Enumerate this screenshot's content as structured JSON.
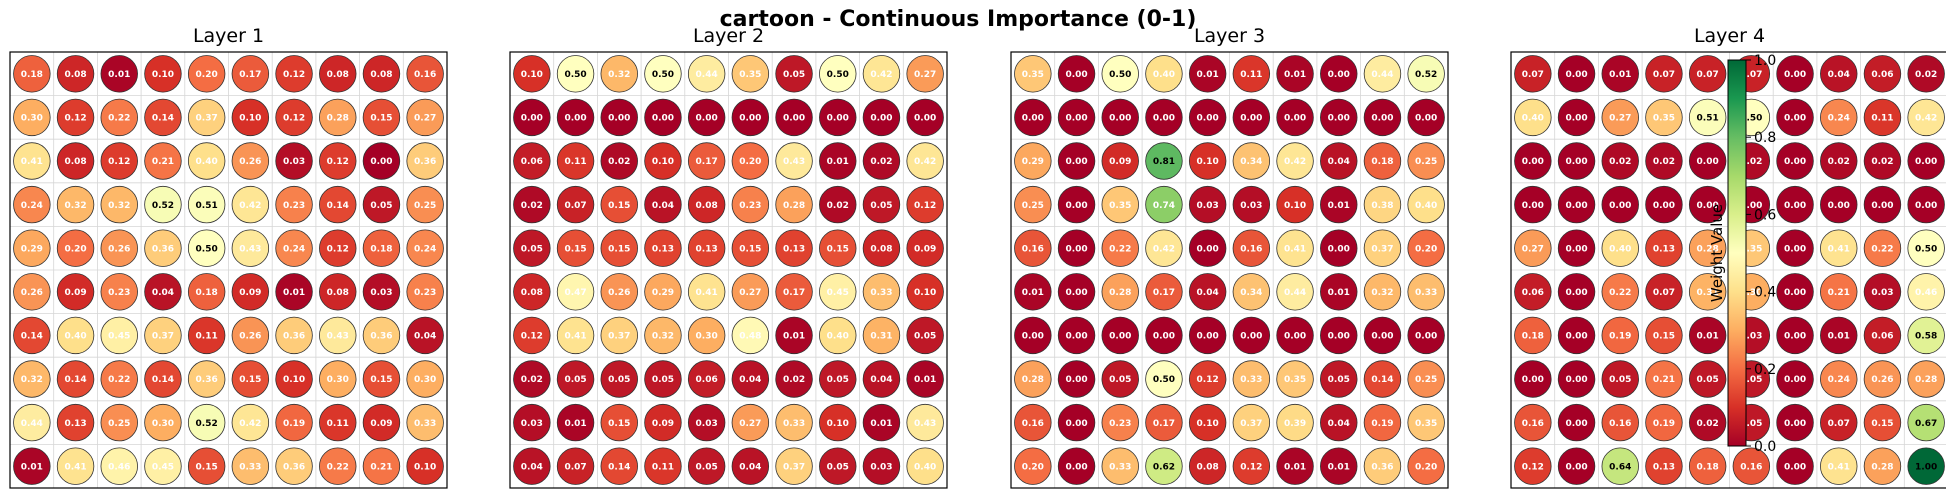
{
  "figure": {
    "title": "cartoon - Continuous Importance (0-1)"
  },
  "colorbar": {
    "label": "Weight Value",
    "ticks": [
      "0.0",
      "0.2",
      "0.4",
      "0.6",
      "0.8",
      "1.0"
    ],
    "tick_values": [
      0.0,
      0.2,
      0.4,
      0.6,
      0.8,
      1.0
    ],
    "colormap": "RdYlGn",
    "stops": [
      "#a50026",
      "#d73027",
      "#f46d43",
      "#fdae61",
      "#fee08b",
      "#ffffbf",
      "#d9ef8b",
      "#a6d96a",
      "#66bd63",
      "#1a9850",
      "#006837"
    ]
  },
  "chart_data": [
    {
      "type": "heatmap",
      "title": "Layer 1",
      "rows": 10,
      "cols": 10,
      "value_range": [
        0,
        1
      ],
      "grid": true,
      "values": [
        [
          0.18,
          0.08,
          0.01,
          0.1,
          0.2,
          0.17,
          0.12,
          0.08,
          0.08,
          0.16
        ],
        [
          0.3,
          0.12,
          0.22,
          0.14,
          0.37,
          0.1,
          0.12,
          0.28,
          0.15,
          0.27
        ],
        [
          0.41,
          0.08,
          0.12,
          0.21,
          0.4,
          0.26,
          0.03,
          0.12,
          0.0,
          0.36
        ],
        [
          0.24,
          0.32,
          0.32,
          0.52,
          0.51,
          0.42,
          0.23,
          0.14,
          0.05,
          0.25
        ],
        [
          0.29,
          0.2,
          0.26,
          0.36,
          0.5,
          0.43,
          0.24,
          0.12,
          0.18,
          0.24
        ],
        [
          0.26,
          0.09,
          0.23,
          0.04,
          0.18,
          0.09,
          0.01,
          0.08,
          0.03,
          0.23
        ],
        [
          0.14,
          0.4,
          0.45,
          0.37,
          0.11,
          0.26,
          0.36,
          0.43,
          0.36,
          0.04
        ],
        [
          0.32,
          0.14,
          0.22,
          0.14,
          0.36,
          0.15,
          0.1,
          0.3,
          0.15,
          0.3
        ],
        [
          0.44,
          0.13,
          0.25,
          0.3,
          0.52,
          0.42,
          0.19,
          0.11,
          0.09,
          0.33
        ],
        [
          0.01,
          0.41,
          0.46,
          0.45,
          0.15,
          0.33,
          0.36,
          0.22,
          0.21,
          0.1
        ]
      ]
    },
    {
      "type": "heatmap",
      "title": "Layer 2",
      "rows": 10,
      "cols": 10,
      "value_range": [
        0,
        1
      ],
      "grid": true,
      "values": [
        [
          0.1,
          0.5,
          0.32,
          0.5,
          0.44,
          0.35,
          0.05,
          0.5,
          0.42,
          0.27
        ],
        [
          0.0,
          0.0,
          0.0,
          0.0,
          0.0,
          0.0,
          0.0,
          0.0,
          0.0,
          0.0
        ],
        [
          0.06,
          0.11,
          0.02,
          0.1,
          0.17,
          0.2,
          0.43,
          0.01,
          0.02,
          0.42
        ],
        [
          0.02,
          0.07,
          0.15,
          0.04,
          0.08,
          0.23,
          0.28,
          0.02,
          0.05,
          0.12
        ],
        [
          0.05,
          0.15,
          0.15,
          0.13,
          0.13,
          0.15,
          0.13,
          0.15,
          0.08,
          0.09
        ],
        [
          0.08,
          0.47,
          0.26,
          0.29,
          0.41,
          0.27,
          0.17,
          0.45,
          0.33,
          0.1
        ],
        [
          0.12,
          0.41,
          0.37,
          0.32,
          0.3,
          0.48,
          0.01,
          0.4,
          0.31,
          0.05
        ],
        [
          0.02,
          0.05,
          0.05,
          0.05,
          0.06,
          0.04,
          0.02,
          0.05,
          0.04,
          0.01
        ],
        [
          0.03,
          0.01,
          0.15,
          0.09,
          0.03,
          0.27,
          0.33,
          0.1,
          0.01,
          0.43
        ],
        [
          0.04,
          0.07,
          0.14,
          0.11,
          0.05,
          0.04,
          0.37,
          0.05,
          0.03,
          0.4
        ]
      ]
    },
    {
      "type": "heatmap",
      "title": "Layer 3",
      "rows": 10,
      "cols": 10,
      "value_range": [
        0,
        1
      ],
      "grid": true,
      "values": [
        [
          0.35,
          0.0,
          0.5,
          0.4,
          0.01,
          0.11,
          0.01,
          0.0,
          0.44,
          0.52
        ],
        [
          0.0,
          0.0,
          0.0,
          0.0,
          0.0,
          0.0,
          0.0,
          0.0,
          0.0,
          0.0
        ],
        [
          0.29,
          0.0,
          0.09,
          0.81,
          0.1,
          0.34,
          0.42,
          0.04,
          0.18,
          0.25
        ],
        [
          0.25,
          0.0,
          0.35,
          0.74,
          0.03,
          0.03,
          0.1,
          0.01,
          0.38,
          0.4
        ],
        [
          0.16,
          0.0,
          0.22,
          0.42,
          0.0,
          0.16,
          0.41,
          0.0,
          0.37,
          0.2
        ],
        [
          0.01,
          0.0,
          0.28,
          0.17,
          0.04,
          0.34,
          0.44,
          0.01,
          0.32,
          0.33
        ],
        [
          0.0,
          0.0,
          0.0,
          0.0,
          0.0,
          0.0,
          0.0,
          0.0,
          0.0,
          0.0
        ],
        [
          0.28,
          0.0,
          0.05,
          0.5,
          0.12,
          0.33,
          0.35,
          0.05,
          0.14,
          0.25
        ],
        [
          0.16,
          0.0,
          0.23,
          0.17,
          0.1,
          0.37,
          0.39,
          0.04,
          0.19,
          0.35
        ],
        [
          0.2,
          0.0,
          0.33,
          0.62,
          0.08,
          0.12,
          0.01,
          0.01,
          0.36,
          0.2
        ]
      ]
    },
    {
      "type": "heatmap",
      "title": "Layer 4",
      "rows": 10,
      "cols": 10,
      "value_range": [
        0,
        1
      ],
      "grid": true,
      "values": [
        [
          0.07,
          0.0,
          0.01,
          0.07,
          0.07,
          0.07,
          0.0,
          0.04,
          0.06,
          0.02
        ],
        [
          0.4,
          0.0,
          0.27,
          0.35,
          0.51,
          0.5,
          0.0,
          0.24,
          0.11,
          0.42
        ],
        [
          0.0,
          0.0,
          0.02,
          0.02,
          0.0,
          0.02,
          0.0,
          0.02,
          0.02,
          0.0
        ],
        [
          0.0,
          0.0,
          0.0,
          0.0,
          0.0,
          0.0,
          0.0,
          0.0,
          0.0,
          0.0
        ],
        [
          0.27,
          0.0,
          0.4,
          0.13,
          0.28,
          0.35,
          0.0,
          0.41,
          0.22,
          0.5
        ],
        [
          0.06,
          0.0,
          0.22,
          0.07,
          0.31,
          0.3,
          0.0,
          0.21,
          0.03,
          0.46
        ],
        [
          0.18,
          0.0,
          0.19,
          0.15,
          0.01,
          0.03,
          0.0,
          0.01,
          0.06,
          0.58
        ],
        [
          0.0,
          0.0,
          0.05,
          0.21,
          0.05,
          0.05,
          0.0,
          0.24,
          0.26,
          0.28
        ],
        [
          0.16,
          0.0,
          0.16,
          0.19,
          0.02,
          0.05,
          0.0,
          0.07,
          0.15,
          0.67
        ],
        [
          0.12,
          0.0,
          0.64,
          0.13,
          0.18,
          0.16,
          0.0,
          0.41,
          0.28,
          1.0
        ]
      ]
    }
  ]
}
